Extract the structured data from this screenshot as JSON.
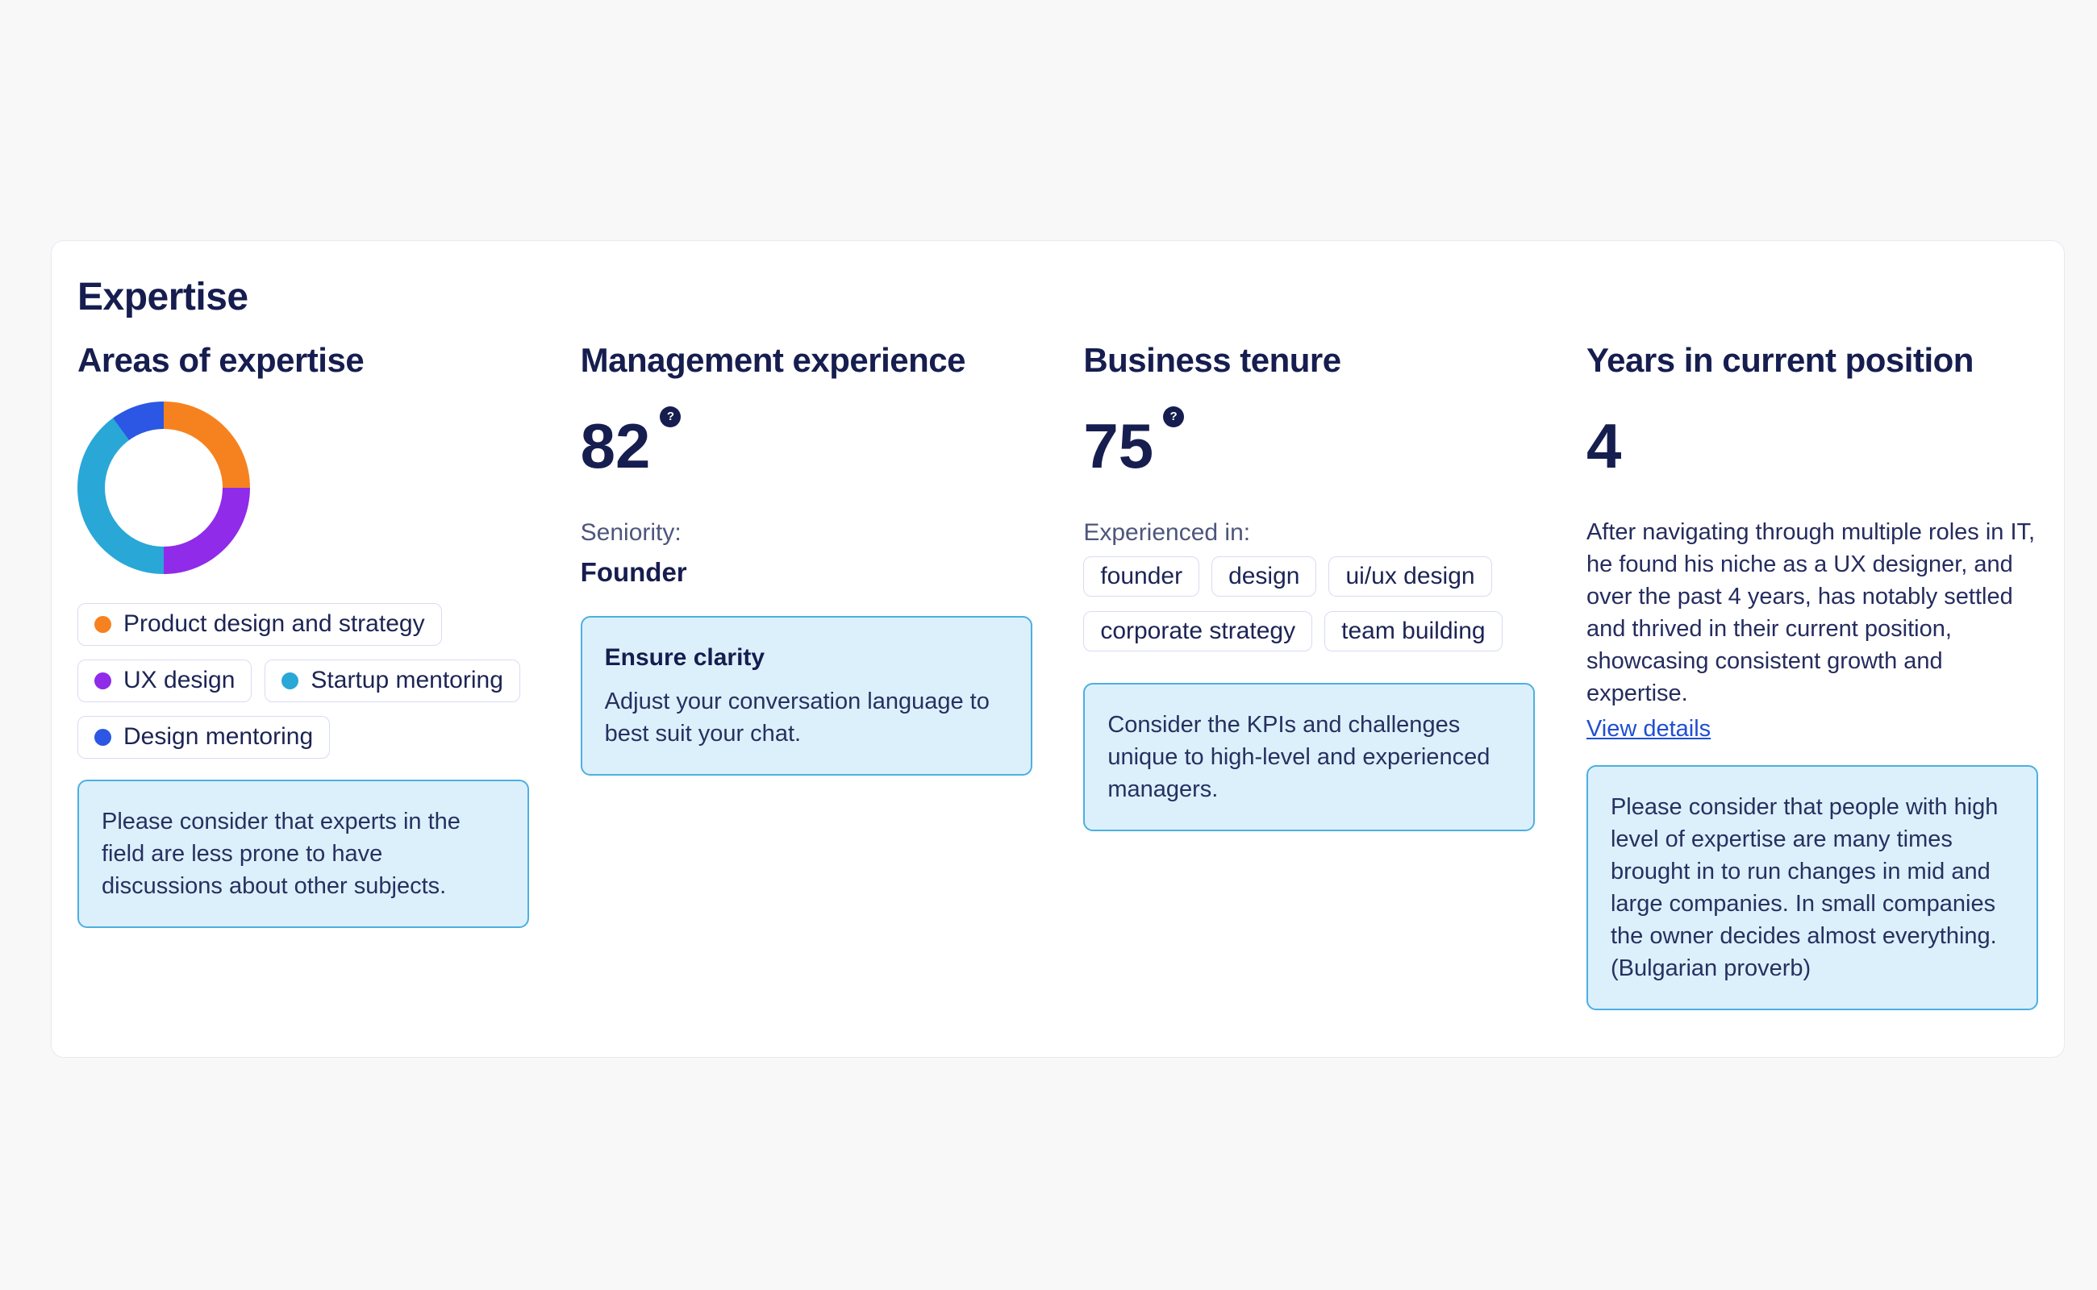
{
  "page": {
    "background_color": "#F8F8F9"
  },
  "card": {
    "title": "Expertise",
    "note_background": "#DCF0FC",
    "note_border": "#4DAFE0",
    "text_navy": "#161D4F",
    "link_blue": "#1F4FD0"
  },
  "columns": {
    "areas": {
      "header": "Areas of expertise",
      "legend": [
        {
          "label": "Product design and strategy",
          "color": "#F6821F"
        },
        {
          "label": "UX design",
          "color": "#8F2BE9"
        },
        {
          "label": "Startup mentoring",
          "color": "#29A7D7"
        },
        {
          "label": "Design mentoring",
          "color": "#2B57E4"
        }
      ],
      "note": "Please consider that experts in the field are less prone to have discussions about other subjects."
    },
    "management": {
      "header": "Management experience",
      "score": "82",
      "help_icon": "?",
      "label": "Seniority:",
      "value": "Founder",
      "note_title": "Ensure clarity",
      "note": "Adjust your conversation language to best suit your chat."
    },
    "tenure": {
      "header": "Business tenure",
      "score": "75",
      "help_icon": "?",
      "label": "Experienced in:",
      "tags": [
        "founder",
        "design",
        "ui/ux design",
        "corporate strategy",
        "team building"
      ],
      "note": "Consider the KPIs and challenges unique to high-level and experienced managers."
    },
    "years": {
      "header": "Years in current position",
      "score": "4",
      "description": "After navigating through multiple roles in IT, he found his niche as a UX designer, and over the past 4 years, has notably settled and thrived in their current position, showcasing consistent growth and expertise.",
      "link": "View details",
      "note": "Please consider that people with high level of expertise are many times brought in to run changes in mid and large companies. In small companies the owner decides almost everything. (Bulgarian proverb)"
    }
  },
  "chart_data": {
    "type": "pie",
    "donut": true,
    "title": "Areas of expertise",
    "categories": [
      "Product design and strategy",
      "UX design",
      "Startup mentoring",
      "Design mentoring"
    ],
    "values": [
      25,
      25,
      40,
      10
    ],
    "unit": "percent",
    "colors": [
      "#F6821F",
      "#8F2BE9",
      "#29A7D7",
      "#2B57E4"
    ],
    "start_angle_deg": 0,
    "direction": "clockwise",
    "legend_position": "bottom"
  }
}
